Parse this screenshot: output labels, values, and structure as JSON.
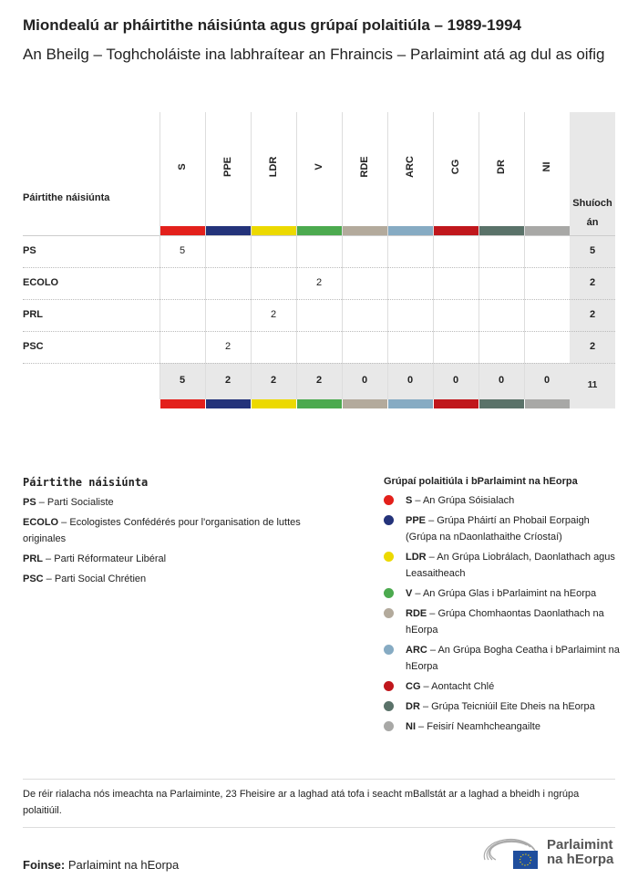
{
  "title": "Miondealú ar pháirtithe náisiúnta agus grúpaí polaitiúla – 1989-1994",
  "subtitle": "An Bheilg – Toghcholáiste ina labhraítear an Fhraincis – Parlaimint atá ag dul as oifig",
  "chart_data": {
    "type": "table",
    "row_header": "Páirtithe náisiúnta",
    "total_header": "Shuíochán",
    "groups": [
      {
        "code": "S",
        "color": "#e3201b"
      },
      {
        "code": "PPE",
        "color": "#24337a"
      },
      {
        "code": "LDR",
        "color": "#ecd900"
      },
      {
        "code": "V",
        "color": "#4caa4f"
      },
      {
        "code": "RDE",
        "color": "#b3aa9c"
      },
      {
        "code": "ARC",
        "color": "#86abc3"
      },
      {
        "code": "CG",
        "color": "#c0171c"
      },
      {
        "code": "DR",
        "color": "#5a7269"
      },
      {
        "code": "NI",
        "color": "#a8a8a6"
      }
    ],
    "rows": [
      {
        "party": "PS",
        "values": [
          5,
          null,
          null,
          null,
          null,
          null,
          null,
          null,
          null
        ],
        "total": "5"
      },
      {
        "party": "ECOLO",
        "values": [
          null,
          null,
          null,
          2,
          null,
          null,
          null,
          null,
          null
        ],
        "total": "2"
      },
      {
        "party": "PRL",
        "values": [
          null,
          null,
          2,
          null,
          null,
          null,
          null,
          null,
          null
        ],
        "total": "2"
      },
      {
        "party": "PSC",
        "values": [
          null,
          2,
          null,
          null,
          null,
          null,
          null,
          null,
          null
        ],
        "total": "2"
      }
    ],
    "column_totals": [
      "5",
      "2",
      "2",
      "2",
      "0",
      "0",
      "0",
      "0",
      "0"
    ],
    "grand_total": "11"
  },
  "legend_parties": {
    "title": "Páirtithe náisiúnta",
    "items": [
      {
        "code": "PS",
        "name": "Parti Socialiste"
      },
      {
        "code": "ECOLO",
        "name": "Ecologistes Confédérés pour l'organisation de luttes originales"
      },
      {
        "code": "PRL",
        "name": "Parti Réformateur Libéral"
      },
      {
        "code": "PSC",
        "name": "Parti Social Chrétien"
      }
    ]
  },
  "legend_groups": {
    "title": "Grúpaí polaitiúla i bParlaimint na hEorpa",
    "items": [
      {
        "code": "S",
        "name": "An Grúpa Sóisialach"
      },
      {
        "code": "PPE",
        "name": "Grúpa Pháirtí an Phobail Eorpaigh (Grúpa na nDaonlathaithe Críostaí)"
      },
      {
        "code": "LDR",
        "name": "An Grúpa Liobrálach, Daonlathach agus Leasaitheach"
      },
      {
        "code": "V",
        "name": "An Grúpa Glas i bParlaimint na hEorpa"
      },
      {
        "code": "RDE",
        "name": "Grúpa Chomhaontas Daonlathach na hEorpa"
      },
      {
        "code": "ARC",
        "name": "An Grúpa Bogha Ceatha i bParlaimint na hEorpa"
      },
      {
        "code": "CG",
        "name": "Aontacht Chlé"
      },
      {
        "code": "DR",
        "name": "Grúpa Teicniúil Eite Dheis na hEorpa"
      },
      {
        "code": "NI",
        "name": "Feisirí Neamhcheangailte"
      }
    ]
  },
  "note": "De réir rialacha nós imeachta na Parlaiminte, 23 Fheisire ar a laghad atá tofa i seacht mBallstát ar a laghad a bheidh i ngrúpa polaitiúil.",
  "source_label": "Foinse:",
  "source": "Parlaimint na hEorpa",
  "logo_text": "Parlaimint na hEorpa"
}
